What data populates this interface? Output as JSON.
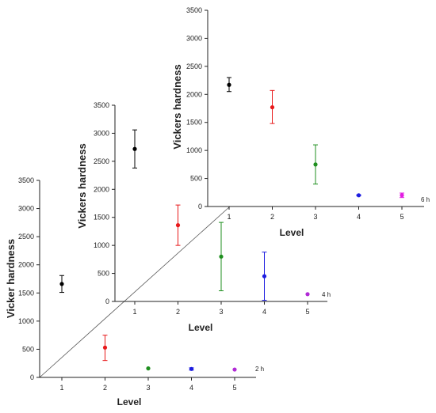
{
  "chart_data": [
    {
      "panel": "2 h",
      "type": "scatter",
      "panel_label": "2 h",
      "xlabel": "Level",
      "ylabel": "Vicker hardness",
      "categories": [
        "1",
        "2",
        "3",
        "4",
        "5"
      ],
      "ylim": [
        0,
        3500
      ],
      "yticks": [
        "0",
        "500",
        "1000",
        "1500",
        "2000",
        "2500",
        "3000",
        "3500"
      ],
      "points": [
        {
          "x": 1,
          "y": 1660,
          "err_low": 1510,
          "err_high": 1810,
          "color": "#000000"
        },
        {
          "x": 2,
          "y": 530,
          "err_low": 300,
          "err_high": 750,
          "color": "#e8191b"
        },
        {
          "x": 3,
          "y": 160,
          "err_low": 160,
          "err_high": 160,
          "color": "#1f8f1f"
        },
        {
          "x": 4,
          "y": 150,
          "err_low": 130,
          "err_high": 170,
          "color": "#1d1de0"
        },
        {
          "x": 5,
          "y": 140,
          "err_low": 140,
          "err_high": 140,
          "color": "#b12bd6"
        }
      ]
    },
    {
      "panel": "4 h",
      "type": "scatter",
      "panel_label": "4 h",
      "xlabel": "Level",
      "ylabel": "Vickers hardness",
      "categories": [
        "1",
        "2",
        "3",
        "4",
        "5"
      ],
      "ylim": [
        0,
        3500
      ],
      "yticks": [
        "0",
        "500",
        "1000",
        "1500",
        "2000",
        "2500",
        "3000",
        "3500"
      ],
      "points": [
        {
          "x": 1,
          "y": 2720,
          "err_low": 2380,
          "err_high": 3060,
          "color": "#000000"
        },
        {
          "x": 2,
          "y": 1360,
          "err_low": 1000,
          "err_high": 1720,
          "color": "#e8191b"
        },
        {
          "x": 3,
          "y": 800,
          "err_low": 190,
          "err_high": 1410,
          "color": "#1f8f1f"
        },
        {
          "x": 4,
          "y": 450,
          "err_low": 20,
          "err_high": 880,
          "color": "#1d1de0"
        },
        {
          "x": 5,
          "y": 130,
          "err_low": 130,
          "err_high": 130,
          "color": "#b12bd6"
        }
      ]
    },
    {
      "panel": "6 h",
      "type": "scatter",
      "panel_label": "6 h",
      "xlabel": "Level",
      "ylabel": "Vickers hardness",
      "categories": [
        "1",
        "2",
        "3",
        "4",
        "5"
      ],
      "ylim": [
        0,
        3500
      ],
      "yticks": [
        "0",
        "500",
        "1000",
        "1500",
        "2000",
        "2500",
        "3000",
        "3500"
      ],
      "points": [
        {
          "x": 1,
          "y": 2170,
          "err_low": 2050,
          "err_high": 2300,
          "color": "#000000"
        },
        {
          "x": 2,
          "y": 1770,
          "err_low": 1480,
          "err_high": 2070,
          "color": "#e8191b"
        },
        {
          "x": 3,
          "y": 750,
          "err_low": 400,
          "err_high": 1100,
          "color": "#1f8f1f"
        },
        {
          "x": 4,
          "y": 200,
          "err_low": 190,
          "err_high": 210,
          "color": "#1d1de0"
        },
        {
          "x": 5,
          "y": 200,
          "err_low": 160,
          "err_high": 240,
          "color": "#e21ce2"
        }
      ]
    }
  ]
}
